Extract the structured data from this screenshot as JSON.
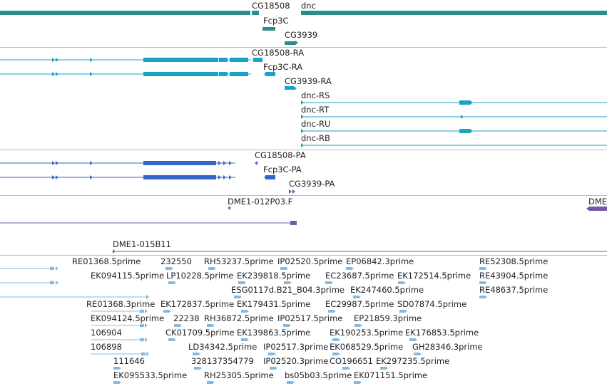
{
  "colors": {
    "gene": "#2e8b8b",
    "transcript": "#19a3c6",
    "protein": "#3366cc",
    "clone": "#7a55a8",
    "est": "#87b9dc",
    "separator": "#bdbdbd"
  },
  "tracks": {
    "genes": {
      "labels": [
        "CG18508",
        "dnc",
        "Fcp3C",
        "CG3939"
      ]
    },
    "transcripts": {
      "labels": [
        "CG18508-RA",
        "Fcp3C-RA",
        "CG3939-RA",
        "dnc-RS",
        "dnc-RT",
        "dnc-RU",
        "dnc-RB"
      ]
    },
    "proteins": {
      "labels": [
        "CG18508-PA",
        "Fcp3C-PA",
        "CG3939-PA"
      ]
    },
    "clones": {
      "labels": [
        "DME1-012P03.F",
        "DME",
        "DME1-015B11"
      ]
    },
    "ests": {
      "labels": [
        "RE01368.5prime",
        "232550",
        "RH53237.5prime",
        "IP02520.5prime",
        "EP06842.3prime",
        "RE52308.5prime",
        "EK094115.5prime",
        "LP10228.5prime",
        "EK239818.5prime",
        "EC23687.5prime",
        "EK172514.5prime",
        "RE43904.5prime",
        "ESG0117d.B21_B04.3prime",
        "EK247460.5prime",
        "RE48637.5prime",
        "RE01368.3prime",
        "EK172837.5prime",
        "EK179431.5prime",
        "EC29987.5prime",
        "SD07874.5prime",
        "EK094124.5prime",
        "22238",
        "RH36872.5prime",
        "IP02517.5prime",
        "EP21859.3prime",
        "106904",
        "CK01709.5prime",
        "EK139863.5prime",
        "EK190253.5prime",
        "EK176853.5prime",
        "106898",
        "LD34342.5prime",
        "IP02517.3prime",
        "EK068529.5prime",
        "GH28346.3prime",
        "111646",
        "328137354779",
        "IP02520.3prime",
        "CO196651",
        "EK297235.5prime",
        "EK095533.5prime",
        "RH25305.5prime",
        "bs05b03.5prime",
        "EK071151.5prime"
      ]
    }
  }
}
